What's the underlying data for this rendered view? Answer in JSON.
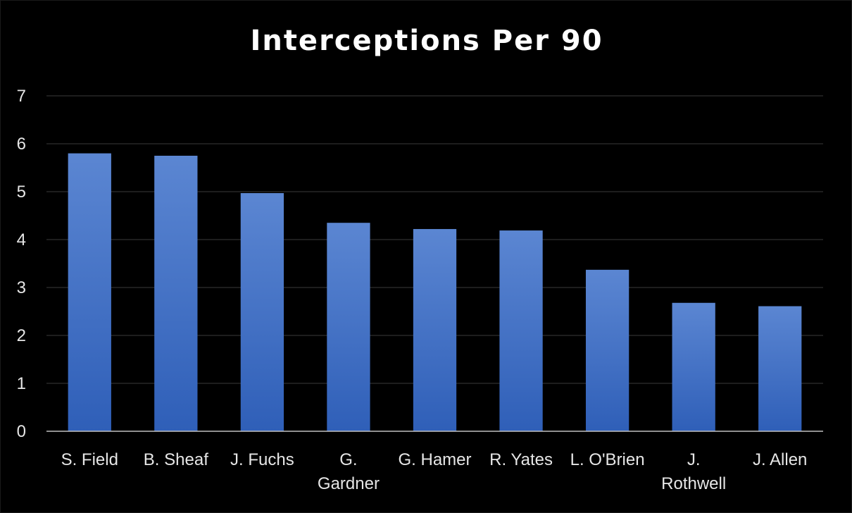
{
  "chart_data": {
    "type": "bar",
    "title": "Interceptions Per 90",
    "xlabel": "",
    "ylabel": "",
    "categories": [
      [
        "S. Field"
      ],
      [
        "B. Sheaf"
      ],
      [
        "J. Fuchs"
      ],
      [
        "G.",
        "Gardner"
      ],
      [
        "G. Hamer"
      ],
      [
        "R. Yates"
      ],
      [
        "L. O'Brien"
      ],
      [
        "J.",
        "Rothwell"
      ],
      [
        "J. Allen"
      ]
    ],
    "values": [
      5.8,
      5.75,
      4.97,
      4.35,
      4.22,
      4.19,
      3.37,
      2.68,
      2.61
    ],
    "ylim": [
      0,
      7
    ],
    "yticks": [
      "0",
      "1",
      "2",
      "3",
      "4",
      "5",
      "6",
      "7"
    ],
    "grid": true,
    "legend": "none",
    "colors": {
      "background": "#000000",
      "bar_top": "#5b86d2",
      "bar_bottom": "#2f5fb8",
      "grid": "#3a3a3a",
      "axis": "#bfbfbf",
      "text": "#e6e6e6",
      "title": "#ffffff"
    }
  }
}
